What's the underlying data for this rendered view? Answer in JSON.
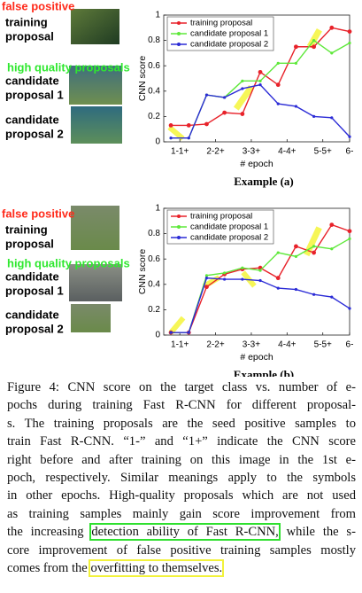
{
  "panels": [
    {
      "rows": [
        {
          "tag": "false positive",
          "label": [
            "training",
            "proposal"
          ]
        },
        {
          "tag": "high quality proposals",
          "label": [
            "candidate",
            "proposal 1"
          ]
        },
        {
          "label": [
            "candidate",
            "proposal 2"
          ]
        }
      ]
    },
    {
      "rows": [
        {
          "tag": "false positive",
          "label": [
            "training",
            "proposal"
          ]
        },
        {
          "tag": "high quality proposals",
          "label": [
            "candidate",
            "proposal 1"
          ]
        },
        {
          "label": [
            "candidate",
            "proposal 2"
          ]
        }
      ]
    }
  ],
  "chart_data": [
    {
      "type": "line",
      "caption": "Example (a)",
      "xlabel": "# epoch",
      "ylabel": "CNN score",
      "x": [
        1,
        2,
        3,
        4,
        5,
        6,
        7,
        8,
        9,
        10,
        11
      ],
      "xlim": [
        0.6,
        11
      ],
      "xticks": [
        {
          "value": 1.5,
          "label": "1-1+"
        },
        {
          "value": 3.5,
          "label": "2-2+"
        },
        {
          "value": 5.5,
          "label": "3-3+"
        },
        {
          "value": 7.5,
          "label": "4-4+"
        },
        {
          "value": 9.5,
          "label": "5-5+"
        },
        {
          "value": 11,
          "label": "6-"
        }
      ],
      "ylim": [
        0,
        1
      ],
      "yticks": [
        0,
        0.2,
        0.4,
        0.6,
        0.8,
        1
      ],
      "legend": "upper left",
      "series": [
        {
          "name": "training proposal",
          "color": "#e8222a",
          "values": [
            0.13,
            0.13,
            0.14,
            0.23,
            0.22,
            0.55,
            0.45,
            0.75,
            0.75,
            0.9,
            0.87
          ]
        },
        {
          "name": "candidate proposal 1",
          "color": "#5ee83a",
          "values": [
            0.03,
            0.03,
            0.37,
            0.35,
            0.48,
            0.48,
            0.62,
            0.62,
            0.8,
            0.7,
            0.78
          ]
        },
        {
          "name": "candidate proposal 2",
          "color": "#2b2bd6",
          "values": [
            0.03,
            0.03,
            0.37,
            0.35,
            0.42,
            0.45,
            0.3,
            0.28,
            0.2,
            0.19,
            0.04
          ]
        }
      ]
    },
    {
      "type": "line",
      "caption": "Example (b)",
      "xlabel": "# epoch",
      "ylabel": "CNN score",
      "x": [
        1,
        2,
        3,
        4,
        5,
        6,
        7,
        8,
        9,
        10,
        11
      ],
      "xlim": [
        0.6,
        11
      ],
      "xticks": [
        {
          "value": 1.5,
          "label": "1-1+"
        },
        {
          "value": 3.5,
          "label": "2-2+"
        },
        {
          "value": 5.5,
          "label": "3-3+"
        },
        {
          "value": 7.5,
          "label": "4-4+"
        },
        {
          "value": 9.5,
          "label": "5-5+"
        },
        {
          "value": 11,
          "label": "6-"
        }
      ],
      "ylim": [
        0,
        1
      ],
      "yticks": [
        0,
        0.2,
        0.4,
        0.6,
        0.8,
        1
      ],
      "legend": "upper left",
      "series": [
        {
          "name": "training proposal",
          "color": "#e8222a",
          "values": [
            0.02,
            0.02,
            0.38,
            0.48,
            0.52,
            0.53,
            0.45,
            0.7,
            0.65,
            0.87,
            0.82
          ]
        },
        {
          "name": "candidate proposal 1",
          "color": "#5ee83a",
          "values": [
            0.02,
            0.02,
            0.47,
            0.49,
            0.53,
            0.51,
            0.65,
            0.62,
            0.7,
            0.68,
            0.76
          ]
        },
        {
          "name": "candidate proposal 2",
          "color": "#2b2bd6",
          "values": [
            0.02,
            0.02,
            0.45,
            0.44,
            0.44,
            0.43,
            0.37,
            0.36,
            0.32,
            0.3,
            0.21
          ]
        }
      ]
    }
  ],
  "caption": {
    "lines": [
      [
        {
          "text": "Figure 4: CNN score on the target class vs. number of e-"
        }
      ],
      [
        {
          "text": "pochs during training Fast R-CNN for different proposal-"
        }
      ],
      [
        {
          "text": "s. The training proposals are the seed positive samples to"
        }
      ],
      [
        {
          "text": "train Fast R-CNN. “1-” and “1+” indicate the CNN score"
        }
      ],
      [
        {
          "text": "right before and after training on this image in the 1st e-"
        }
      ],
      [
        {
          "text": "poch, respectively. Similar meanings apply to the symbols"
        }
      ],
      [
        {
          "text": "in other epochs. High-quality proposals which are not used"
        }
      ],
      [
        {
          "text": "as training samples mainly gain score improvement from"
        }
      ],
      [
        {
          "text": "the increasing "
        },
        {
          "text": "detection ability of Fast R-CNN,",
          "box": "#2fe02f"
        },
        {
          "text": " while the s-"
        }
      ],
      [
        {
          "text": "core improvement of false positive training samples mostly"
        }
      ],
      [
        {
          "text": "comes from the "
        },
        {
          "text": "overfitting to themselves.",
          "box": "#f2f23a"
        }
      ]
    ]
  }
}
